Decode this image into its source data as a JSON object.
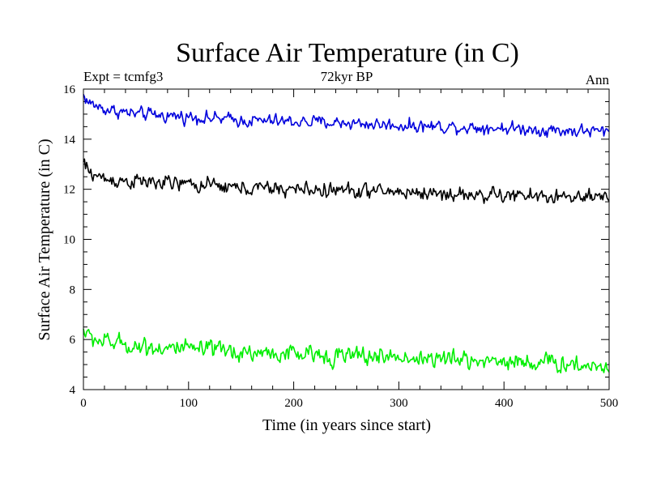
{
  "chart_data": {
    "type": "line",
    "title": "Surface Air Temperature (in C)",
    "subtitle_left": "Expt = tcmfg3",
    "subtitle_center": "72kyr BP",
    "subtitle_right": "Ann",
    "xlabel": "Time (in years since start)",
    "ylabel": "Surface Air Temperature (in C)",
    "xlim": [
      0,
      500
    ],
    "ylim": [
      4,
      16
    ],
    "xticks": [
      0,
      100,
      200,
      300,
      400,
      500
    ],
    "yticks": [
      4,
      6,
      8,
      10,
      12,
      14,
      16
    ],
    "x_minor_step": 20,
    "y_minor_step": 0.5,
    "grid": false,
    "legend": "none",
    "x_step": 1,
    "series": [
      {
        "name": "blue",
        "color": "#0000dd",
        "keypoints": [
          [
            0,
            15.75
          ],
          [
            5,
            15.45
          ],
          [
            20,
            15.2
          ],
          [
            50,
            15.0
          ],
          [
            100,
            14.9
          ],
          [
            150,
            14.75
          ],
          [
            200,
            14.7
          ],
          [
            250,
            14.65
          ],
          [
            300,
            14.55
          ],
          [
            350,
            14.5
          ],
          [
            400,
            14.45
          ],
          [
            450,
            14.35
          ],
          [
            500,
            14.3
          ]
        ],
        "noise": 0.12
      },
      {
        "name": "black",
        "color": "#000000",
        "keypoints": [
          [
            0,
            13.05
          ],
          [
            5,
            12.7
          ],
          [
            20,
            12.4
          ],
          [
            50,
            12.3
          ],
          [
            100,
            12.2
          ],
          [
            150,
            12.05
          ],
          [
            200,
            12.0
          ],
          [
            250,
            11.95
          ],
          [
            300,
            11.9
          ],
          [
            350,
            11.8
          ],
          [
            400,
            11.75
          ],
          [
            450,
            11.7
          ],
          [
            500,
            11.6
          ]
        ],
        "noise": 0.14
      },
      {
        "name": "green",
        "color": "#00ee00",
        "keypoints": [
          [
            0,
            6.4
          ],
          [
            5,
            6.1
          ],
          [
            20,
            5.9
          ],
          [
            50,
            5.75
          ],
          [
            100,
            5.6
          ],
          [
            150,
            5.5
          ],
          [
            200,
            5.4
          ],
          [
            250,
            5.35
          ],
          [
            300,
            5.3
          ],
          [
            350,
            5.2
          ],
          [
            400,
            5.15
          ],
          [
            450,
            5.05
          ],
          [
            500,
            4.9
          ]
        ],
        "noise": 0.17
      }
    ]
  }
}
